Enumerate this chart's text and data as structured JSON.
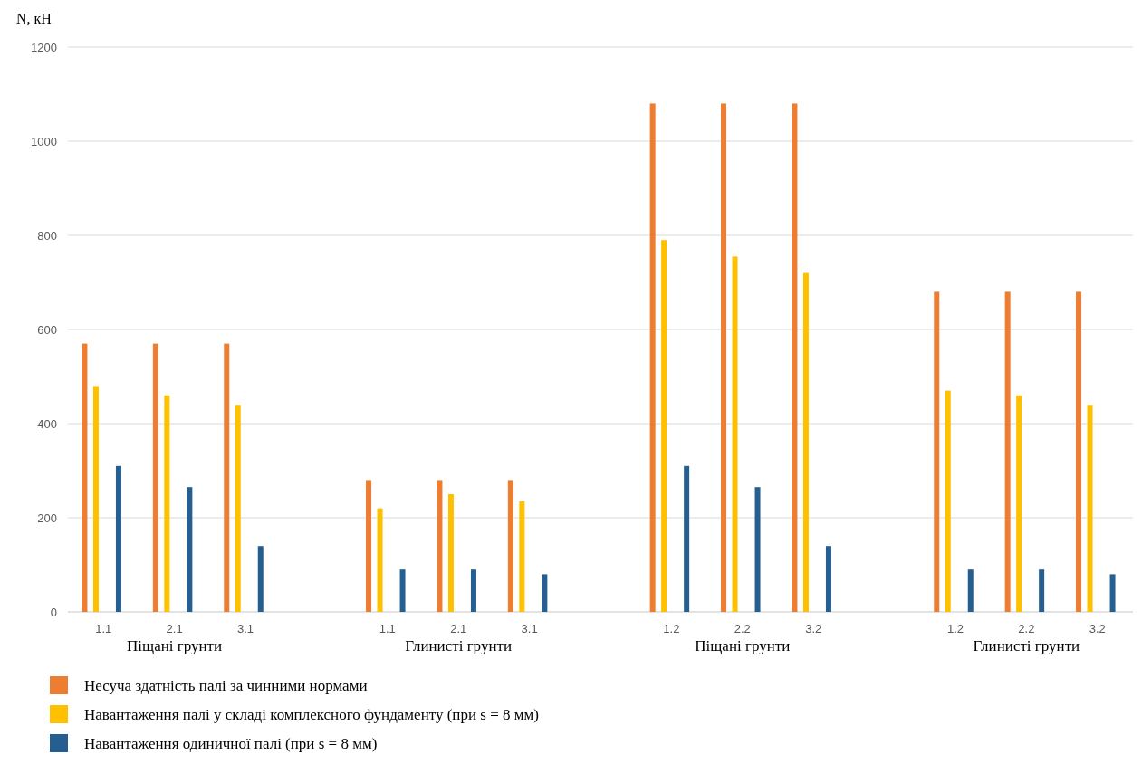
{
  "chart_data": {
    "type": "bar",
    "ylabel": "N, кН",
    "categories": [
      "1.1",
      "2.1",
      "3.1",
      null,
      "1.1",
      "2.1",
      "3.1",
      null,
      "1.2",
      "2.2",
      "3.2",
      null,
      "1.2",
      "2.2",
      "3.2"
    ],
    "series": [
      {
        "name": "Несуча здатність палі за чинними нормами",
        "color": "#ed7d31",
        "values": [
          570,
          570,
          570,
          null,
          280,
          280,
          280,
          null,
          1080,
          1080,
          1080,
          null,
          680,
          680,
          680
        ]
      },
      {
        "name": "Навантаження палі у складі комплексного фундаменту (при s = 8 мм)",
        "color": "#ffc000",
        "values": [
          480,
          460,
          440,
          null,
          220,
          250,
          235,
          null,
          790,
          755,
          720,
          null,
          470,
          460,
          440
        ]
      },
      {
        "name": "Навантаження одиничної палі (при s = 8 мм)",
        "color": "#255e91",
        "values": [
          310,
          265,
          140,
          null,
          90,
          90,
          80,
          null,
          310,
          265,
          140,
          null,
          90,
          90,
          80
        ]
      }
    ],
    "annotations": [
      "Піщані грунти",
      "Глинисті грунти",
      "Піщані грунти",
      "Глинисті грунти"
    ],
    "ylim": [
      0,
      1200
    ],
    "yticks": [
      0,
      200,
      400,
      600,
      800,
      1000,
      1200
    ],
    "grid": "y",
    "legend": "bottom"
  }
}
